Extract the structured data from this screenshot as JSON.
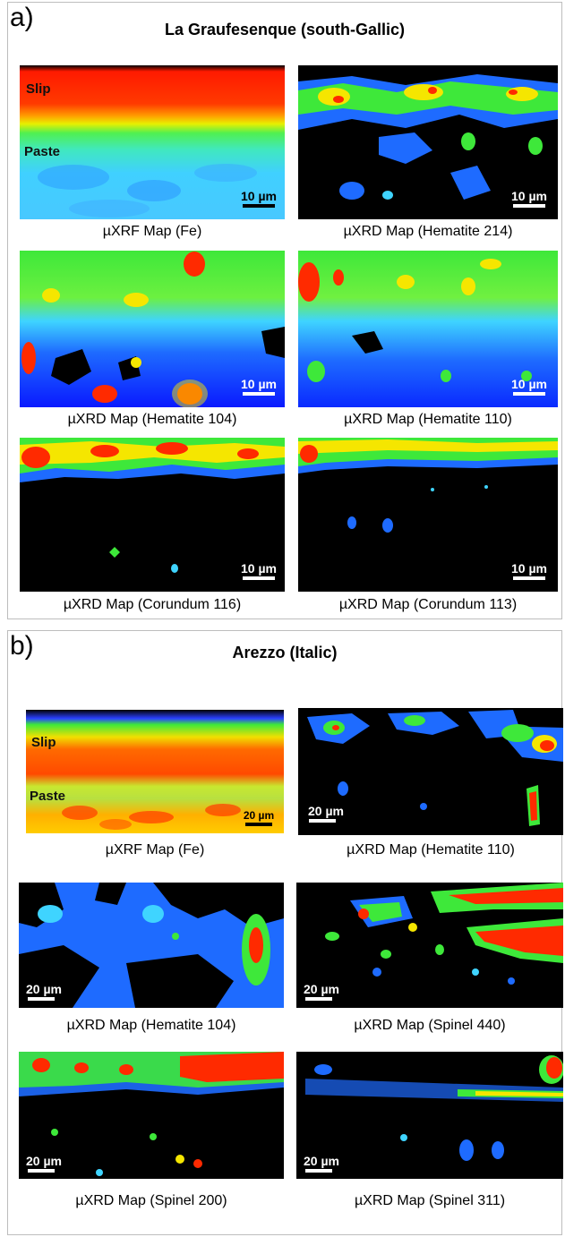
{
  "panel_a": {
    "letter": "a)",
    "title": "La Graufesenque (south-Gallic)",
    "maps": [
      {
        "caption": "µXRF Map (Fe)",
        "scale": "10 µm",
        "labels": [
          "Slip",
          "Paste"
        ]
      },
      {
        "caption": "µXRD Map (Hematite 214)",
        "scale": "10 µm"
      },
      {
        "caption": "µXRD Map (Hematite 104)",
        "scale": "10 µm"
      },
      {
        "caption": "µXRD Map (Hematite 110)",
        "scale": "10 µm"
      },
      {
        "caption": "µXRD Map (Corundum 116)",
        "scale": "10 µm"
      },
      {
        "caption": "µXRD Map (Corundum 113)",
        "scale": "10 µm"
      }
    ]
  },
  "panel_b": {
    "letter": "b)",
    "title": "Arezzo (Italic)",
    "maps": [
      {
        "caption": "µXRF Map (Fe)",
        "scale": "20 µm",
        "labels": [
          "Slip",
          "Paste"
        ]
      },
      {
        "caption": "µXRD Map (Hematite 110)",
        "scale": "20 µm"
      },
      {
        "caption": "µXRD Map (Hematite 104)",
        "scale": "20 µm"
      },
      {
        "caption": "µXRD Map (Spinel 440)",
        "scale": "20 µm"
      },
      {
        "caption": "µXRD Map (Spinel 200)",
        "scale": "20 µm"
      },
      {
        "caption": "µXRD Map (Spinel 311)",
        "scale": "20 µm"
      }
    ]
  },
  "colors": {
    "red": "#ff2a00",
    "orange": "#ff8c00",
    "yellow": "#f5e600",
    "green": "#3ee83a",
    "cyan": "#3fd4ff",
    "blue": "#1e6bff",
    "dark_blue": "#0a1aff",
    "black": "#000000"
  }
}
